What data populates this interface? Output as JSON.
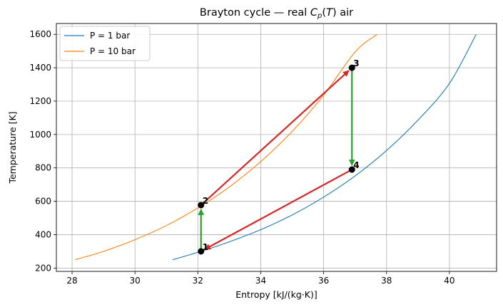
{
  "chart_data": {
    "type": "line",
    "title_prefix": "Brayton cycle — real ",
    "title_cp": "C",
    "title_cp_sub": "p",
    "title_paren_open": "(",
    "title_T": "T",
    "title_suffix": ") air",
    "xlabel": "Entropy [kJ/(kg·K)]",
    "ylabel": "Temperature [K]",
    "xlim": [
      27.5,
      41.5
    ],
    "ylim": [
      180,
      1665
    ],
    "xticks": [
      28,
      30,
      32,
      34,
      36,
      38,
      40
    ],
    "yticks": [
      200,
      400,
      600,
      800,
      1000,
      1200,
      1400,
      1600
    ],
    "grid": true,
    "legend_position": "top-left",
    "series": [
      {
        "name": "P = 1 bar",
        "color": "#1f77b4",
        "x": [
          31.2,
          32.1,
          33.0,
          34.0,
          35.0,
          36.0,
          37.0,
          38.0,
          39.0,
          40.0,
          40.85
        ],
        "y": [
          250,
          300,
          357,
          430,
          518,
          625,
          752,
          904,
          1086,
          1306,
          1600
        ]
      },
      {
        "name": "P = 10 bar",
        "color": "#ff7f0e",
        "x": [
          28.1,
          29.0,
          30.0,
          31.0,
          32.0,
          33.0,
          34.0,
          35.0,
          36.0,
          37.0,
          37.7
        ],
        "y": [
          250,
          300,
          370,
          455,
          560,
          686,
          838,
          1019,
          1236,
          1495,
          1600
        ]
      }
    ],
    "processes": [
      {
        "from": "1",
        "to": "2",
        "color": "#2ca02c"
      },
      {
        "from": "2",
        "to": "3",
        "color": "#d62728"
      },
      {
        "from": "3",
        "to": "4",
        "color": "#2ca02c"
      },
      {
        "from": "4",
        "to": "1",
        "color": "#d62728"
      }
    ],
    "states": [
      {
        "label": "1",
        "x": 32.1,
        "y": 300
      },
      {
        "label": "2",
        "x": 32.1,
        "y": 577
      },
      {
        "label": "3",
        "x": 36.9,
        "y": 1400
      },
      {
        "label": "4",
        "x": 36.9,
        "y": 790
      }
    ]
  }
}
